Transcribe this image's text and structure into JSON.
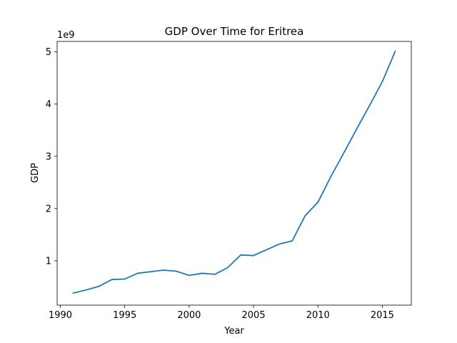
{
  "chart_data": {
    "type": "line",
    "title": "GDP Over Time for Eritrea",
    "xlabel": "Year",
    "ylabel": "GDP",
    "y_offset_label": "1e9",
    "grid": false,
    "legend": "none",
    "xlim": [
      1989.75,
      2017.25
    ],
    "ylim": [
      0.15,
      5.2
    ],
    "x_ticks": [
      1990,
      1995,
      2000,
      2005,
      2010,
      2015
    ],
    "x_tick_labels": [
      "1990",
      "1995",
      "2000",
      "2005",
      "2010",
      "2015"
    ],
    "y_ticks": [
      1,
      2,
      3,
      4,
      5
    ],
    "y_tick_labels": [
      "1",
      "2",
      "3",
      "4",
      "5"
    ],
    "series": [
      {
        "color": "#1f77b4",
        "x": [
          1991,
          1992,
          1993,
          1994,
          1995,
          1996,
          1997,
          1998,
          1999,
          2000,
          2001,
          2002,
          2003,
          2004,
          2005,
          2006,
          2007,
          2008,
          2009,
          2010,
          2011,
          2012,
          2013,
          2014,
          2015,
          2016
        ],
        "y": [
          0.38,
          0.44,
          0.51,
          0.64,
          0.65,
          0.76,
          0.79,
          0.82,
          0.8,
          0.72,
          0.76,
          0.74,
          0.87,
          1.11,
          1.1,
          1.21,
          1.32,
          1.38,
          1.86,
          2.12,
          2.61,
          3.06,
          3.52,
          3.97,
          4.43,
          5.01
        ]
      }
    ]
  }
}
